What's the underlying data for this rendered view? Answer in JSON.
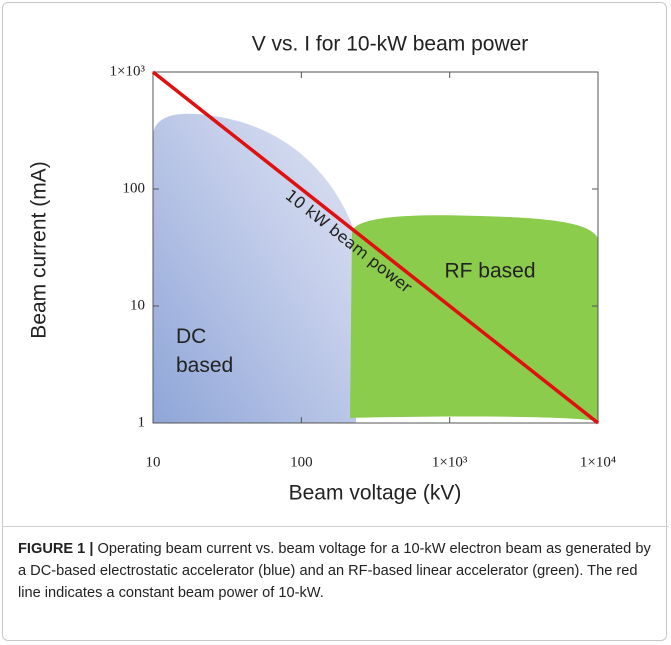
{
  "chart_data": {
    "type": "line",
    "title": "V vs. I for 10-kW beam power",
    "x_label": "Beam voltage (kV)",
    "y_label": "Beam current (mA)",
    "xscale": "log",
    "yscale": "log",
    "x": [
      10,
      10000
    ],
    "values": [
      1000,
      1
    ],
    "color": "#e01010",
    "xlim": [
      10,
      10000
    ],
    "ylim": [
      1,
      1000
    ],
    "xticks": [
      10,
      100,
      {
        "value": 1000,
        "label": "1×10³"
      },
      {
        "value": 10000,
        "label": "1×10⁴"
      }
    ],
    "yticks": [
      1,
      10,
      100,
      {
        "value": 1000,
        "label": "1×10³"
      }
    ],
    "annotations": [
      "10 kW beam power",
      "RF based",
      "DC based"
    ]
  },
  "caption": {
    "label": "FIGURE 1 |",
    "text": "Operating beam current vs. beam voltage for a 10-kW electron beam as generated by a DC-based electrostatic accelerator (blue) and an RF-based linear accelerator (green). The red line indicates a constant beam power of 10-kW."
  }
}
